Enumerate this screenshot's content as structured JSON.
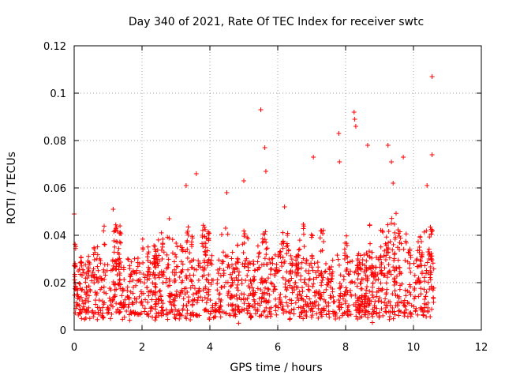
{
  "chart_data": {
    "type": "scatter",
    "title": "Day 340 of 2021, Rate Of TEC Index for receiver swtc",
    "xlabel": "GPS time / hours",
    "ylabel": "ROTI / TECUs",
    "xlim": [
      0,
      12
    ],
    "ylim": [
      0,
      0.12
    ],
    "x_ticks": [
      "0",
      "2",
      "4",
      "6",
      "8",
      "10",
      "12"
    ],
    "y_ticks": [
      "0",
      "0.02",
      "0.04",
      "0.06",
      "0.08",
      "0.1",
      "0.12"
    ],
    "x_tick_values": [
      0,
      2,
      4,
      6,
      8,
      10,
      12
    ],
    "y_tick_values": [
      0,
      0.02,
      0.04,
      0.06,
      0.08,
      0.1,
      0.12
    ],
    "grid": true,
    "marker": "+",
    "color": "#ff0000",
    "x_data_range": [
      0,
      10.6
    ],
    "baseline_band": [
      0.006,
      0.03
    ],
    "notable_points": [
      {
        "x": 0.0,
        "y": 0.049
      },
      {
        "x": 1.15,
        "y": 0.051
      },
      {
        "x": 3.6,
        "y": 0.066
      },
      {
        "x": 5.5,
        "y": 0.093
      },
      {
        "x": 5.62,
        "y": 0.077
      },
      {
        "x": 5.65,
        "y": 0.067
      },
      {
        "x": 7.05,
        "y": 0.073
      },
      {
        "x": 7.8,
        "y": 0.083
      },
      {
        "x": 7.82,
        "y": 0.071
      },
      {
        "x": 8.25,
        "y": 0.092
      },
      {
        "x": 8.27,
        "y": 0.089
      },
      {
        "x": 8.3,
        "y": 0.086
      },
      {
        "x": 8.65,
        "y": 0.078
      },
      {
        "x": 9.25,
        "y": 0.078
      },
      {
        "x": 9.35,
        "y": 0.071
      },
      {
        "x": 9.7,
        "y": 0.073
      },
      {
        "x": 10.55,
        "y": 0.107
      },
      {
        "x": 10.55,
        "y": 0.074
      }
    ],
    "activity_peaks": [
      {
        "x": 2.8,
        "y": 0.047
      },
      {
        "x": 3.3,
        "y": 0.061
      },
      {
        "x": 4.5,
        "y": 0.058
      },
      {
        "x": 5.0,
        "y": 0.063
      },
      {
        "x": 6.2,
        "y": 0.052
      },
      {
        "x": 9.4,
        "y": 0.062
      },
      {
        "x": 10.4,
        "y": 0.061
      }
    ]
  }
}
